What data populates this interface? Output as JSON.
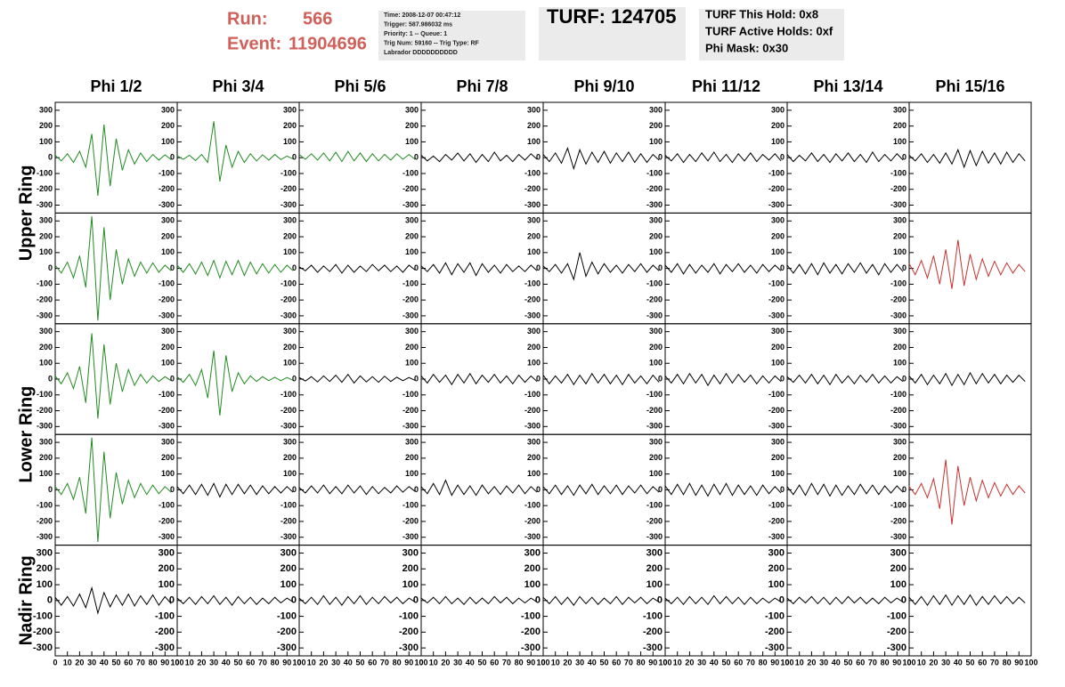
{
  "header": {
    "run_label": "Run:",
    "run": "566",
    "event_label": "Event:",
    "event": "11904696",
    "info": [
      "Time: 2008-12-07 00:47:12",
      "Trigger: 587.986032 ms",
      "Priority: 1 -- Queue: 1",
      "Trig Num: 59160 -- Trig Type: RF",
      "Labrador DDDDDDDDDD"
    ],
    "turf": "TURF: 124705",
    "turf_info": [
      "TURF This Hold: 0x8",
      "TURF Active Holds: 0xf",
      "Phi Mask: 0x30"
    ]
  },
  "chart_data": {
    "type": "line",
    "columns": [
      "Phi 1/2",
      "Phi 3/4",
      "Phi 5/6",
      "Phi 7/8",
      "Phi 9/10",
      "Phi 11/12",
      "Phi 13/14",
      "Phi 15/16"
    ],
    "rows": [
      "Upper Ring",
      "Lower Ring",
      "Nadir Ring"
    ],
    "x": [
      0,
      5,
      10,
      15,
      20,
      25,
      30,
      35,
      40,
      45,
      50,
      55,
      60,
      65,
      70,
      75,
      80,
      85,
      90,
      95
    ],
    "xlim": [
      0,
      100
    ],
    "xticks": [
      0,
      10,
      20,
      30,
      40,
      50,
      60,
      70,
      80,
      90,
      100
    ],
    "ylim": [
      -350,
      350
    ],
    "yticks": [
      -300,
      -200,
      -100,
      0,
      100,
      200,
      300
    ],
    "series": [
      {
        "color": "#228b22",
        "values": [
          15,
          -20,
          25,
          -30,
          40,
          -60,
          150,
          -240,
          210,
          -180,
          120,
          -80,
          50,
          -40,
          30,
          -25,
          20,
          -15,
          18,
          -12
        ]
      },
      {
        "color": "#228b22",
        "values": [
          12,
          -10,
          15,
          -18,
          20,
          -30,
          230,
          -150,
          80,
          -60,
          40,
          -30,
          25,
          -20,
          18,
          -15,
          20,
          -12,
          10,
          -8
        ]
      },
      {
        "color": "#228b22",
        "values": [
          20,
          -10,
          25,
          -15,
          30,
          -20,
          35,
          -25,
          40,
          -20,
          30,
          -25,
          25,
          -20,
          20,
          -15,
          25,
          -10,
          20,
          -10
        ]
      },
      {
        "color": "#000000",
        "values": [
          15,
          -20,
          10,
          -25,
          20,
          -15,
          30,
          -20,
          25,
          -30,
          20,
          -25,
          35,
          -20,
          15,
          -25,
          20,
          -15,
          25,
          -10
        ]
      },
      {
        "color": "#000000",
        "values": [
          20,
          -25,
          30,
          -35,
          60,
          -70,
          50,
          -40,
          35,
          -30,
          40,
          -35,
          30,
          -25,
          35,
          -30,
          25,
          -30,
          20,
          -15
        ]
      },
      {
        "color": "#000000",
        "values": [
          15,
          -20,
          25,
          -30,
          20,
          -25,
          30,
          -20,
          35,
          -25,
          20,
          -30,
          25,
          -20,
          30,
          -25,
          20,
          -15,
          25,
          -20
        ]
      },
      {
        "color": "#000000",
        "values": [
          20,
          -25,
          15,
          -20,
          30,
          -25,
          20,
          -30,
          25,
          -20,
          30,
          -25,
          20,
          -30,
          35,
          -25,
          20,
          -20,
          25,
          -15
        ]
      },
      {
        "color": "#000000",
        "values": [
          15,
          -20,
          25,
          -30,
          20,
          -35,
          30,
          -40,
          50,
          -60,
          45,
          -50,
          40,
          -35,
          30,
          -40,
          35,
          -30,
          25,
          -20
        ]
      },
      {
        "color": "#228b22",
        "values": [
          20,
          -30,
          40,
          -60,
          80,
          -120,
          330,
          -330,
          260,
          -200,
          120,
          -100,
          60,
          -50,
          40,
          -30,
          35,
          -25,
          20,
          -15
        ]
      },
      {
        "color": "#228b22",
        "values": [
          20,
          -25,
          30,
          -35,
          40,
          -45,
          50,
          -60,
          45,
          -40,
          50,
          -45,
          40,
          -35,
          30,
          -30,
          25,
          -25,
          20,
          -15
        ]
      },
      {
        "color": "#000000",
        "values": [
          10,
          -15,
          20,
          -25,
          15,
          -20,
          25,
          -30,
          20,
          -25,
          15,
          -20,
          25,
          -15,
          20,
          -20,
          15,
          -25,
          20,
          -10
        ]
      },
      {
        "color": "#000000",
        "values": [
          15,
          -20,
          25,
          -30,
          35,
          -40,
          30,
          -25,
          35,
          -45,
          30,
          -25,
          20,
          -30,
          25,
          -20,
          15,
          -20,
          20,
          -15
        ]
      },
      {
        "color": "#000000",
        "values": [
          15,
          -20,
          25,
          -30,
          30,
          -70,
          100,
          -50,
          40,
          -35,
          30,
          -25,
          20,
          -30,
          25,
          -20,
          30,
          -25,
          20,
          -15
        ]
      },
      {
        "color": "#000000",
        "values": [
          20,
          -25,
          30,
          -35,
          25,
          -30,
          20,
          -25,
          30,
          -35,
          25,
          -20,
          30,
          -25,
          20,
          -30,
          25,
          -20,
          20,
          -15
        ]
      },
      {
        "color": "#000000",
        "values": [
          20,
          -30,
          25,
          -35,
          30,
          -40,
          35,
          -30,
          25,
          -35,
          30,
          -25,
          35,
          -30,
          25,
          -40,
          30,
          -25,
          25,
          -20
        ]
      },
      {
        "color": "#c8302f",
        "values": [
          30,
          -40,
          50,
          -60,
          80,
          -100,
          120,
          -130,
          180,
          -110,
          90,
          -70,
          60,
          -50,
          45,
          -40,
          35,
          -30,
          25,
          -20
        ]
      },
      {
        "color": "#228b22",
        "values": [
          20,
          -30,
          40,
          -60,
          80,
          -150,
          290,
          -250,
          220,
          -160,
          100,
          -80,
          60,
          -40,
          30,
          -25,
          20,
          -15,
          15,
          -10
        ]
      },
      {
        "color": "#228b22",
        "values": [
          15,
          -20,
          30,
          -40,
          60,
          -120,
          180,
          -230,
          150,
          -80,
          40,
          -30,
          20,
          -15,
          15,
          -10,
          12,
          -10,
          10,
          -8
        ]
      },
      {
        "color": "#000000",
        "values": [
          10,
          -12,
          15,
          -18,
          20,
          -15,
          25,
          -20,
          30,
          -25,
          20,
          -18,
          15,
          -20,
          18,
          -15,
          12,
          -10,
          10,
          -8
        ]
      },
      {
        "color": "#000000",
        "values": [
          20,
          -25,
          30,
          -20,
          25,
          -35,
          30,
          -25,
          35,
          -30,
          25,
          -20,
          30,
          -25,
          20,
          -30,
          25,
          -20,
          20,
          -15
        ]
      },
      {
        "color": "#000000",
        "values": [
          25,
          -30,
          20,
          -25,
          30,
          -35,
          25,
          -30,
          35,
          -25,
          30,
          -30,
          25,
          -35,
          30,
          -25,
          20,
          -30,
          25,
          -20
        ]
      },
      {
        "color": "#000000",
        "values": [
          20,
          -25,
          30,
          -30,
          35,
          -25,
          30,
          -40,
          25,
          -30,
          35,
          -25,
          30,
          -20,
          25,
          -30,
          20,
          -25,
          20,
          -15
        ]
      },
      {
        "color": "#000000",
        "values": [
          15,
          -20,
          25,
          -25,
          30,
          -30,
          25,
          -35,
          30,
          -25,
          20,
          -30,
          25,
          -20,
          30,
          -25,
          20,
          -25,
          15,
          -15
        ]
      },
      {
        "color": "#000000",
        "values": [
          20,
          -25,
          30,
          -35,
          25,
          -30,
          35,
          -40,
          30,
          -35,
          40,
          -30,
          35,
          -25,
          30,
          -30,
          25,
          -20,
          25,
          -15
        ]
      },
      {
        "color": "#228b22",
        "values": [
          20,
          -30,
          40,
          -60,
          80,
          -150,
          330,
          -330,
          240,
          -180,
          110,
          -90,
          60,
          -50,
          40,
          -30,
          30,
          -25,
          20,
          -15
        ]
      },
      {
        "color": "#000000",
        "values": [
          20,
          -25,
          30,
          -30,
          35,
          -35,
          40,
          -45,
          35,
          -30,
          35,
          -25,
          30,
          -30,
          25,
          -25,
          20,
          -20,
          20,
          -15
        ]
      },
      {
        "color": "#000000",
        "values": [
          15,
          -20,
          25,
          -20,
          30,
          -25,
          20,
          -25,
          30,
          -20,
          25,
          -30,
          20,
          -25,
          15,
          -20,
          25,
          -15,
          20,
          -10
        ]
      },
      {
        "color": "#000000",
        "values": [
          20,
          -25,
          40,
          -30,
          60,
          -35,
          30,
          -30,
          25,
          -35,
          30,
          -25,
          20,
          -30,
          25,
          -20,
          30,
          -25,
          20,
          -15
        ]
      },
      {
        "color": "#000000",
        "values": [
          20,
          -25,
          30,
          -30,
          25,
          -35,
          30,
          -25,
          35,
          -30,
          25,
          -25,
          30,
          -30,
          25,
          -20,
          30,
          -25,
          20,
          -15
        ]
      },
      {
        "color": "#000000",
        "values": [
          25,
          -30,
          35,
          -30,
          40,
          -35,
          30,
          -40,
          35,
          -30,
          40,
          -35,
          30,
          -30,
          25,
          -35,
          30,
          -25,
          20,
          -20
        ]
      },
      {
        "color": "#000000",
        "values": [
          20,
          -30,
          30,
          -35,
          40,
          -30,
          35,
          -40,
          30,
          -35,
          25,
          -30,
          35,
          -25,
          30,
          -30,
          25,
          -20,
          25,
          -15
        ]
      },
      {
        "color": "#c8302f",
        "values": [
          20,
          -30,
          40,
          -50,
          70,
          -120,
          190,
          -220,
          150,
          -100,
          80,
          -70,
          60,
          -50,
          45,
          -40,
          35,
          -30,
          25,
          -20
        ]
      },
      {
        "color": "#000000",
        "values": [
          20,
          -30,
          25,
          -35,
          40,
          -45,
          80,
          -80,
          50,
          -40,
          35,
          -30,
          40,
          -35,
          30,
          -25,
          35,
          -30,
          25,
          -20
        ]
      },
      {
        "color": "#000000",
        "values": [
          15,
          -20,
          20,
          -25,
          25,
          -20,
          30,
          -25,
          20,
          -30,
          25,
          -20,
          20,
          -25,
          15,
          -20,
          20,
          -15,
          15,
          -10
        ]
      },
      {
        "color": "#000000",
        "values": [
          15,
          -20,
          20,
          -25,
          30,
          -25,
          20,
          -30,
          25,
          -20,
          30,
          -25,
          20,
          -20,
          25,
          -15,
          20,
          -20,
          15,
          -10
        ]
      },
      {
        "color": "#000000",
        "values": [
          15,
          -15,
          20,
          -20,
          25,
          -20,
          15,
          -25,
          20,
          -20,
          15,
          -20,
          25,
          -15,
          20,
          -20,
          15,
          -15,
          15,
          -10
        ]
      },
      {
        "color": "#000000",
        "values": [
          20,
          -20,
          25,
          -25,
          20,
          -30,
          25,
          -20,
          20,
          -25,
          15,
          -20,
          25,
          -25,
          20,
          -15,
          20,
          -20,
          15,
          -10
        ]
      },
      {
        "color": "#000000",
        "values": [
          15,
          -20,
          20,
          -25,
          25,
          -20,
          20,
          -25,
          30,
          -20,
          25,
          -20,
          20,
          -25,
          20,
          -20,
          15,
          -15,
          15,
          -10
        ]
      },
      {
        "color": "#000000",
        "values": [
          15,
          -20,
          20,
          -15,
          25,
          -20,
          20,
          -25,
          20,
          -20,
          25,
          -15,
          20,
          -20,
          15,
          -20,
          20,
          -15,
          15,
          -10
        ]
      },
      {
        "color": "#000000",
        "values": [
          20,
          -25,
          25,
          -30,
          30,
          -25,
          35,
          -30,
          30,
          -25,
          35,
          -30,
          25,
          -25,
          30,
          -20,
          25,
          -20,
          20,
          -15
        ]
      }
    ]
  }
}
